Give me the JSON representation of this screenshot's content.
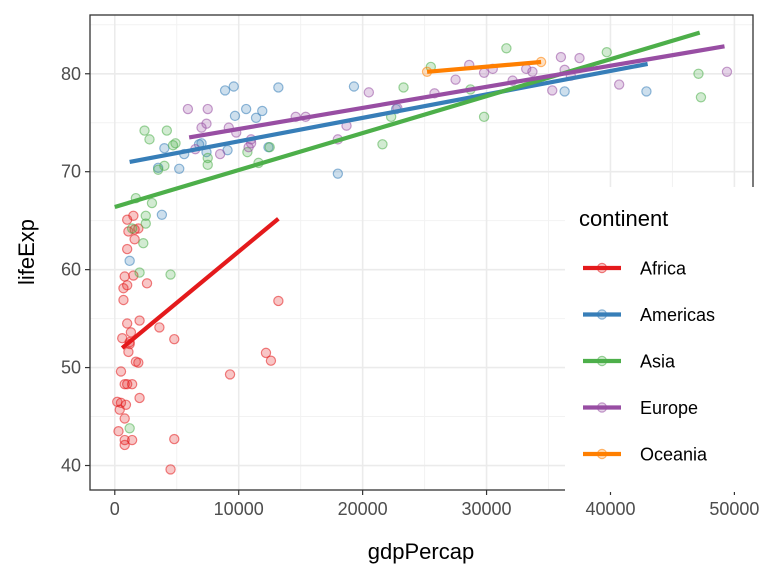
{
  "chart_data": {
    "type": "scatter",
    "xlabel": "gdpPercap",
    "ylabel": "lifeExp",
    "xlim": [
      -2000,
      51500
    ],
    "ylim": [
      37.5,
      86
    ],
    "x_ticks": [
      0,
      10000,
      20000,
      30000,
      40000,
      50000
    ],
    "y_ticks": [
      40,
      50,
      60,
      70,
      80
    ],
    "grid": true,
    "legend": {
      "title": "continent",
      "placement": "right"
    },
    "series": [
      {
        "name": "Africa",
        "color": "#e41a1c",
        "trend": [
          [
            600,
            52.0
          ],
          [
            13200,
            65.2
          ]
        ],
        "points": [
          [
            200,
            46.5
          ],
          [
            300,
            43.5
          ],
          [
            400,
            45.7
          ],
          [
            500,
            49.6
          ],
          [
            500,
            46.4
          ],
          [
            600,
            53.0
          ],
          [
            700,
            56.9
          ],
          [
            700,
            58.1
          ],
          [
            800,
            44.8
          ],
          [
            800,
            59.3
          ],
          [
            800,
            48.3
          ],
          [
            800,
            42.6
          ],
          [
            800,
            42.1
          ],
          [
            900,
            46.2
          ],
          [
            1000,
            48.3
          ],
          [
            1000,
            54.5
          ],
          [
            1000,
            62.1
          ],
          [
            1000,
            58.4
          ],
          [
            1000,
            65.1
          ],
          [
            1100,
            51.6
          ],
          [
            1100,
            63.9
          ],
          [
            1200,
            52.4
          ],
          [
            1200,
            52.6
          ],
          [
            1300,
            53.6
          ],
          [
            1400,
            48.3
          ],
          [
            1400,
            42.6
          ],
          [
            1500,
            59.4
          ],
          [
            1500,
            65.5
          ],
          [
            1600,
            63.1
          ],
          [
            1600,
            64.1
          ],
          [
            1700,
            50.6
          ],
          [
            1900,
            64.2
          ],
          [
            1900,
            50.5
          ],
          [
            2000,
            54.8
          ],
          [
            2000,
            46.9
          ],
          [
            2600,
            58.6
          ],
          [
            3600,
            54.1
          ],
          [
            4500,
            39.6
          ],
          [
            4800,
            52.9
          ],
          [
            4800,
            42.7
          ],
          [
            9300,
            49.3
          ],
          [
            12200,
            51.5
          ],
          [
            12600,
            50.7
          ],
          [
            13200,
            56.8
          ]
        ]
      },
      {
        "name": "Americas",
        "color": "#377eb8",
        "trend": [
          [
            1200,
            71.0
          ],
          [
            43000,
            81.0
          ]
        ],
        "points": [
          [
            1200,
            60.9
          ],
          [
            3500,
            70.4
          ],
          [
            3800,
            65.6
          ],
          [
            4000,
            72.4
          ],
          [
            5200,
            70.3
          ],
          [
            5600,
            71.8
          ],
          [
            6800,
            72.8
          ],
          [
            7000,
            72.9
          ],
          [
            7400,
            72.0
          ],
          [
            8900,
            78.3
          ],
          [
            9100,
            72.2
          ],
          [
            9600,
            78.7
          ],
          [
            9700,
            75.7
          ],
          [
            10600,
            76.4
          ],
          [
            11400,
            75.5
          ],
          [
            11900,
            76.2
          ],
          [
            12400,
            72.5
          ],
          [
            13200,
            78.6
          ],
          [
            18000,
            69.8
          ],
          [
            19300,
            78.7
          ],
          [
            22700,
            76.4
          ],
          [
            36300,
            78.2
          ],
          [
            42900,
            78.2
          ]
        ]
      },
      {
        "name": "Asia",
        "color": "#4daf4a",
        "trend": [
          [
            0,
            66.4
          ],
          [
            47200,
            84.2
          ]
        ],
        "points": [
          [
            1200,
            43.8
          ],
          [
            1400,
            64.2
          ],
          [
            1700,
            67.3
          ],
          [
            2000,
            59.7
          ],
          [
            2300,
            62.7
          ],
          [
            2400,
            74.2
          ],
          [
            2500,
            64.7
          ],
          [
            2500,
            65.5
          ],
          [
            2800,
            73.3
          ],
          [
            3000,
            66.8
          ],
          [
            3500,
            70.2
          ],
          [
            4000,
            70.6
          ],
          [
            4200,
            74.2
          ],
          [
            4500,
            59.5
          ],
          [
            4700,
            72.7
          ],
          [
            4900,
            72.9
          ],
          [
            7500,
            71.4
          ],
          [
            7500,
            70.7
          ],
          [
            10700,
            72.0
          ],
          [
            11600,
            70.9
          ],
          [
            12500,
            72.5
          ],
          [
            21600,
            72.8
          ],
          [
            22300,
            75.6
          ],
          [
            23300,
            78.6
          ],
          [
            25500,
            80.7
          ],
          [
            28700,
            78.4
          ],
          [
            29800,
            75.6
          ],
          [
            31600,
            82.6
          ],
          [
            39700,
            82.2
          ],
          [
            47100,
            80.0
          ],
          [
            47300,
            77.6
          ]
        ]
      },
      {
        "name": "Europe",
        "color": "#984ea3",
        "trend": [
          [
            6000,
            73.5
          ],
          [
            49200,
            82.8
          ]
        ],
        "points": [
          [
            5900,
            76.4
          ],
          [
            6500,
            72.3
          ],
          [
            7000,
            74.5
          ],
          [
            7400,
            74.9
          ],
          [
            7500,
            76.4
          ],
          [
            8500,
            71.8
          ],
          [
            9200,
            74.5
          ],
          [
            9800,
            74.0
          ],
          [
            10800,
            72.5
          ],
          [
            11000,
            72.9
          ],
          [
            11000,
            73.3
          ],
          [
            14600,
            75.6
          ],
          [
            15400,
            75.6
          ],
          [
            18000,
            73.3
          ],
          [
            18700,
            74.7
          ],
          [
            20500,
            78.1
          ],
          [
            22800,
            76.5
          ],
          [
            25800,
            78.0
          ],
          [
            27500,
            79.4
          ],
          [
            28600,
            80.9
          ],
          [
            29800,
            80.1
          ],
          [
            30500,
            80.5
          ],
          [
            32100,
            79.3
          ],
          [
            33200,
            80.5
          ],
          [
            33700,
            80.2
          ],
          [
            35300,
            78.3
          ],
          [
            36000,
            81.7
          ],
          [
            36300,
            80.4
          ],
          [
            36800,
            79.8
          ],
          [
            37500,
            81.6
          ],
          [
            40700,
            78.9
          ],
          [
            49400,
            80.2
          ]
        ]
      },
      {
        "name": "Oceania",
        "color": "#ff7f00",
        "trend": [
          [
            25200,
            80.2
          ],
          [
            34400,
            81.2
          ]
        ],
        "points": [
          [
            25200,
            80.2
          ],
          [
            34400,
            81.2
          ]
        ]
      }
    ]
  }
}
